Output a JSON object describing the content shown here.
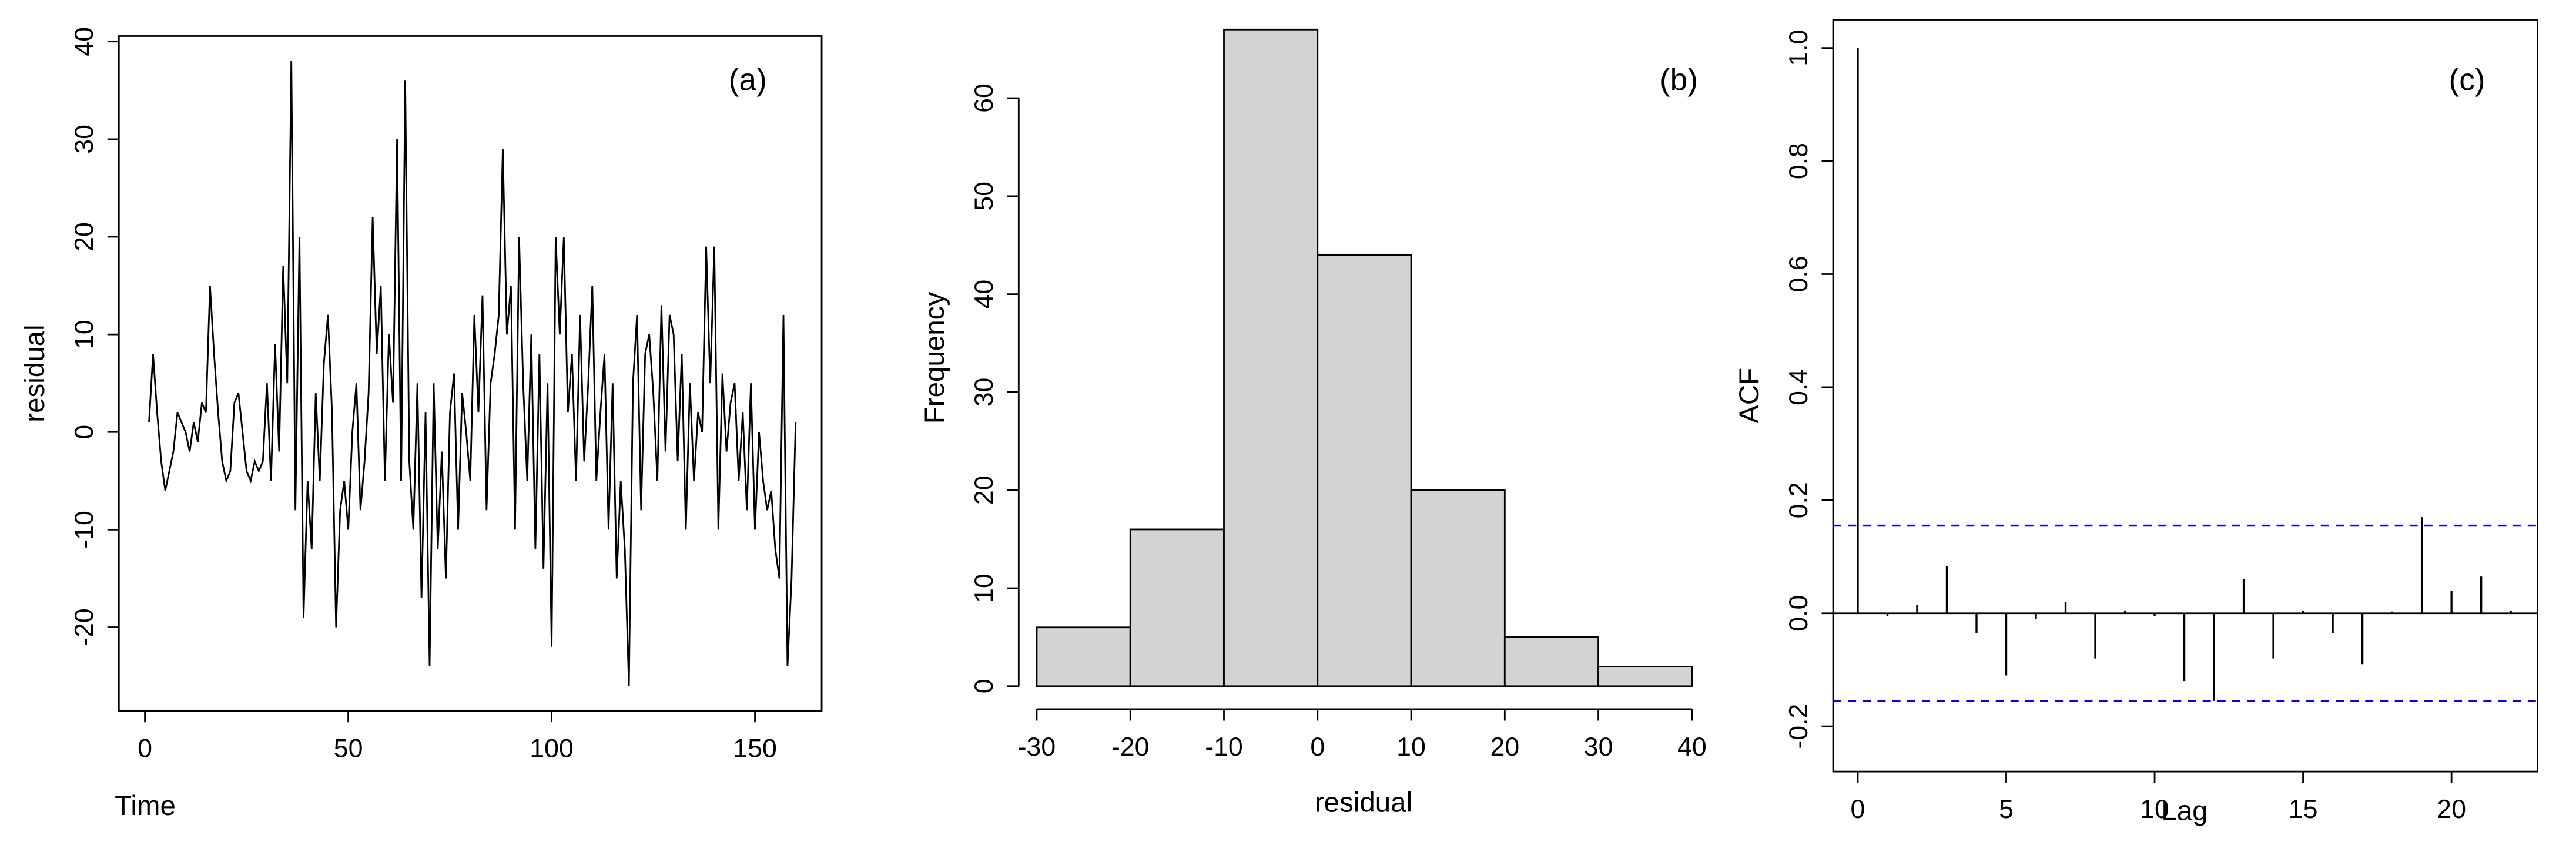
{
  "chart_data": [
    {
      "type": "line",
      "annotation": "(a)",
      "xlabel": "Time",
      "ylabel": "residual",
      "color": "#000000",
      "x": [
        1,
        2,
        3,
        4,
        5,
        6,
        7,
        8,
        9,
        10,
        11,
        12,
        13,
        14,
        15,
        16,
        17,
        18,
        19,
        20,
        21,
        22,
        23,
        24,
        25,
        26,
        27,
        28,
        29,
        30,
        31,
        32,
        33,
        34,
        35,
        36,
        37,
        38,
        39,
        40,
        41,
        42,
        43,
        44,
        45,
        46,
        47,
        48,
        49,
        50,
        51,
        52,
        53,
        54,
        55,
        56,
        57,
        58,
        59,
        60,
        61,
        62,
        63,
        64,
        65,
        66,
        67,
        68,
        69,
        70,
        71,
        72,
        73,
        74,
        75,
        76,
        77,
        78,
        79,
        80,
        81,
        82,
        83,
        84,
        85,
        86,
        87,
        88,
        89,
        90,
        91,
        92,
        93,
        94,
        95,
        96,
        97,
        98,
        99,
        100,
        101,
        102,
        103,
        104,
        105,
        106,
        107,
        108,
        109,
        110,
        111,
        112,
        113,
        114,
        115,
        116,
        117,
        118,
        119,
        120,
        121,
        122,
        123,
        124,
        125,
        126,
        127,
        128,
        129,
        130,
        131,
        132,
        133,
        134,
        135,
        136,
        137,
        138,
        139,
        140,
        141,
        142,
        143,
        144,
        145,
        146,
        147,
        148,
        149,
        150,
        151,
        152,
        153,
        154,
        155,
        156,
        157,
        158,
        159,
        160
      ],
      "values": [
        1,
        8,
        2,
        -3,
        -6,
        -4,
        -2,
        2,
        1,
        0,
        -2,
        1,
        -1,
        3,
        2,
        15,
        8,
        2,
        -3,
        -5,
        -4,
        3,
        4,
        0,
        -4,
        -5,
        -3,
        -4,
        -3,
        5,
        -5,
        9,
        -2,
        17,
        5,
        38,
        -8,
        20,
        -19,
        -5,
        -12,
        4,
        -5,
        7,
        12,
        2,
        -20,
        -8,
        -5,
        -10,
        0,
        5,
        -8,
        -3,
        4,
        22,
        8,
        15,
        -5,
        10,
        3,
        30,
        -5,
        36,
        -3,
        -10,
        5,
        -17,
        2,
        -24,
        5,
        -12,
        -2,
        -15,
        2,
        6,
        -10,
        4,
        0,
        -5,
        12,
        2,
        14,
        -8,
        5,
        8,
        12,
        29,
        10,
        15,
        -10,
        20,
        5,
        -5,
        10,
        -12,
        8,
        -14,
        5,
        -22,
        20,
        10,
        20,
        2,
        8,
        -5,
        12,
        -3,
        5,
        15,
        -5,
        2,
        8,
        -10,
        5,
        -15,
        -5,
        -12,
        -26,
        5,
        12,
        -8,
        8,
        10,
        4,
        -5,
        13,
        -2,
        12,
        10,
        -3,
        8,
        -10,
        5,
        -5,
        2,
        0,
        19,
        5,
        19,
        -10,
        6,
        -2,
        3,
        5,
        -5,
        2,
        -8,
        5,
        -10,
        0,
        -5,
        -8,
        -6,
        -12,
        -15,
        12,
        -24,
        -15,
        1
      ],
      "xlim": [
        -6.4,
        166.4
      ],
      "ylim": [
        -28.56,
        40.56
      ],
      "xticks": [
        0,
        50,
        100,
        150
      ],
      "yticks": [
        -20,
        -10,
        0,
        10,
        20,
        30,
        40
      ]
    },
    {
      "type": "histogram",
      "annotation": "(b)",
      "xlabel": "residual",
      "ylabel": "Frequency",
      "color": "#d3d3d3",
      "bins": [
        -30,
        -20,
        -10,
        0,
        10,
        20,
        30,
        40
      ],
      "values": [
        6,
        16,
        67,
        44,
        20,
        5,
        2
      ],
      "xlim": [
        -32.8,
        42.8
      ],
      "ylim": [
        0,
        67
      ],
      "xticks": [
        -30,
        -20,
        -10,
        0,
        10,
        20,
        30,
        40
      ],
      "yticks": [
        0,
        10,
        20,
        30,
        40,
        50,
        60
      ]
    },
    {
      "type": "acf",
      "annotation": "(c)",
      "xlabel": "Lag",
      "ylabel": "ACF",
      "color": "#000000",
      "ci_color": "#0000ff",
      "x": [
        0,
        1,
        2,
        3,
        4,
        5,
        6,
        7,
        8,
        9,
        10,
        11,
        12,
        13,
        14,
        15,
        16,
        17,
        18,
        19,
        20,
        21,
        22
      ],
      "values": [
        1,
        -0.005,
        0.015,
        0.083,
        -0.035,
        -0.11,
        -0.01,
        0.02,
        -0.08,
        0.005,
        -0.005,
        -0.12,
        -0.155,
        0.06,
        -0.08,
        0.005,
        -0.035,
        -0.09,
        0.003,
        0.17,
        0.04,
        0.065,
        0.005
      ],
      "ci_lines": [
        0.155,
        -0.155
      ],
      "xlim": [
        -0.83,
        22.9
      ],
      "ylim": [
        -0.28,
        1.05
      ],
      "xticks": [
        0,
        5,
        10,
        15,
        20
      ],
      "yticks": [
        {
          "value": -0.2,
          "label": "-0.2"
        },
        {
          "value": 0,
          "label": "0.0"
        },
        {
          "value": 0.2,
          "label": "0.2"
        },
        {
          "value": 0.4,
          "label": "0.4"
        },
        {
          "value": 0.6,
          "label": "0.6"
        },
        {
          "value": 0.8,
          "label": "0.8"
        },
        {
          "value": 1,
          "label": "1.0"
        }
      ]
    }
  ]
}
